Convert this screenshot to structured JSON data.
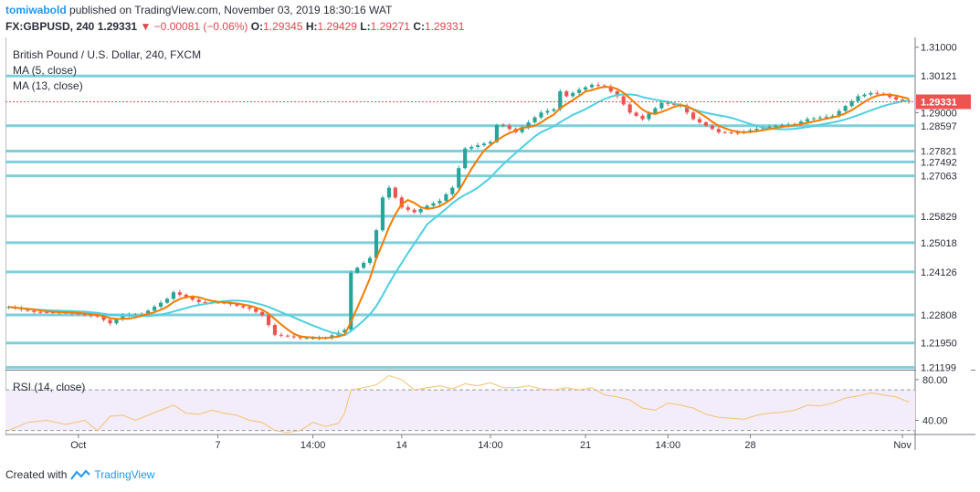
{
  "header": {
    "author": "tomiwabold",
    "published_text": "published on TradingView.com, November 03, 2019 18:30:16 WAT",
    "symbol": "FX:GBPUSD, 240",
    "price": "1.29331",
    "change": "−0.00081 (−0.06%)",
    "open_label": "O:",
    "open_value": "1.29345",
    "high_label": "H:",
    "high_value": "1.29429",
    "low_label": "L:",
    "low_value": "1.29271",
    "close_label": "C:",
    "close_value": "1.29331"
  },
  "legend": {
    "title": "British Pound / U.S. Dollar, 240, FXCM",
    "ma5": "MA (5, close)",
    "ma13": "MA (13, close)"
  },
  "rsi_title": "RSI (14, close)",
  "footer": {
    "created_with": "Created with",
    "brand": "TradingView"
  },
  "colors": {
    "up": "#26a69a",
    "down": "#ef5350",
    "ma5": "#f57c00",
    "ma13": "#4dd0e1",
    "level_line": "#7fcfdb",
    "rsi_line": "#f5c16c",
    "rsi_band": "#f3ecfb",
    "price_tag": "#ef5350"
  },
  "chart_data": {
    "type": "candlestick",
    "title": "British Pound / U.S. Dollar, 240, FXCM",
    "ylim": [
      1.2116,
      1.313
    ],
    "y_tick_labels": [
      "1.31000",
      "1.29000"
    ],
    "horizontal_levels": [
      1.30121,
      1.28597,
      1.27821,
      1.27492,
      1.27063,
      1.25829,
      1.25018,
      1.24126,
      1.22808,
      1.2195,
      1.21199
    ],
    "last_price": 1.29331,
    "x_labels": [
      "Oct",
      "7",
      "14:00",
      "14",
      "14:00",
      "21",
      "14:00",
      "28",
      "Nov"
    ],
    "x_label_index": [
      11,
      33,
      48,
      62,
      76,
      91,
      104,
      117,
      141
    ],
    "n_bars": 143,
    "anchors": [
      [
        0,
        1.2305
      ],
      [
        4,
        1.229
      ],
      [
        9,
        1.2288
      ],
      [
        14,
        1.2276
      ],
      [
        16,
        1.2255
      ],
      [
        18,
        1.228
      ],
      [
        21,
        1.2282
      ],
      [
        25,
        1.233
      ],
      [
        26,
        1.235
      ],
      [
        28,
        1.2335
      ],
      [
        30,
        1.232
      ],
      [
        34,
        1.2318
      ],
      [
        38,
        1.23
      ],
      [
        40,
        1.228
      ],
      [
        42,
        1.222
      ],
      [
        46,
        1.221
      ],
      [
        50,
        1.221
      ],
      [
        53,
        1.2235
      ],
      [
        54,
        1.241
      ],
      [
        56,
        1.244
      ],
      [
        57,
        1.2455
      ],
      [
        58,
        1.254
      ],
      [
        59,
        1.264
      ],
      [
        60,
        1.267
      ],
      [
        61,
        1.264
      ],
      [
        62,
        1.261
      ],
      [
        64,
        1.2595
      ],
      [
        66,
        1.2615
      ],
      [
        68,
        1.263
      ],
      [
        70,
        1.267
      ],
      [
        72,
        1.279
      ],
      [
        74,
        1.28
      ],
      [
        76,
        1.281
      ],
      [
        77,
        1.2862
      ],
      [
        78,
        1.286
      ],
      [
        80,
        1.284
      ],
      [
        82,
        1.287
      ],
      [
        84,
        1.29
      ],
      [
        86,
        1.291
      ],
      [
        87,
        1.2965
      ],
      [
        88,
        1.295
      ],
      [
        90,
        1.297
      ],
      [
        92,
        1.2985
      ],
      [
        94,
        1.298
      ],
      [
        96,
        1.295
      ],
      [
        98,
        1.29
      ],
      [
        100,
        1.288
      ],
      [
        103,
        1.293
      ],
      [
        106,
        1.292
      ],
      [
        108,
        1.288
      ],
      [
        110,
        1.286
      ],
      [
        112,
        1.284
      ],
      [
        115,
        1.2838
      ],
      [
        118,
        1.285
      ],
      [
        121,
        1.286
      ],
      [
        124,
        1.2865
      ],
      [
        126,
        1.288
      ],
      [
        128,
        1.2885
      ],
      [
        130,
        1.289
      ],
      [
        132,
        1.292
      ],
      [
        134,
        1.295
      ],
      [
        136,
        1.296
      ],
      [
        138,
        1.2955
      ],
      [
        140,
        1.294
      ],
      [
        142,
        1.29331
      ]
    ],
    "rsi": {
      "name": "RSI (14, close)",
      "ylim": [
        27,
        88
      ],
      "levels": [
        70,
        30
      ],
      "y_tick_labels": [
        "80.00",
        "40.00"
      ],
      "anchors": [
        [
          0,
          30
        ],
        [
          3,
          38
        ],
        [
          6,
          40
        ],
        [
          9,
          36
        ],
        [
          12,
          40
        ],
        [
          14,
          30
        ],
        [
          16,
          44
        ],
        [
          18,
          45
        ],
        [
          20,
          40
        ],
        [
          24,
          50
        ],
        [
          26,
          55
        ],
        [
          28,
          47
        ],
        [
          30,
          46
        ],
        [
          32,
          50
        ],
        [
          34,
          47
        ],
        [
          36,
          45
        ],
        [
          38,
          40
        ],
        [
          40,
          38
        ],
        [
          42,
          30
        ],
        [
          44,
          28
        ],
        [
          46,
          30
        ],
        [
          48,
          38
        ],
        [
          50,
          34
        ],
        [
          52,
          37
        ],
        [
          53,
          47
        ],
        [
          54,
          70
        ],
        [
          56,
          72
        ],
        [
          58,
          75
        ],
        [
          60,
          84
        ],
        [
          62,
          80
        ],
        [
          64,
          70
        ],
        [
          66,
          72
        ],
        [
          68,
          74
        ],
        [
          70,
          71
        ],
        [
          72,
          76
        ],
        [
          74,
          74
        ],
        [
          76,
          77
        ],
        [
          78,
          72
        ],
        [
          80,
          72
        ],
        [
          82,
          74
        ],
        [
          84,
          71
        ],
        [
          86,
          70
        ],
        [
          88,
          72
        ],
        [
          90,
          70
        ],
        [
          92,
          72
        ],
        [
          94,
          65
        ],
        [
          96,
          63
        ],
        [
          98,
          60
        ],
        [
          100,
          52
        ],
        [
          102,
          50
        ],
        [
          104,
          57
        ],
        [
          106,
          55
        ],
        [
          108,
          52
        ],
        [
          110,
          46
        ],
        [
          112,
          43
        ],
        [
          114,
          42
        ],
        [
          116,
          41
        ],
        [
          118,
          45
        ],
        [
          120,
          47
        ],
        [
          122,
          48
        ],
        [
          124,
          50
        ],
        [
          126,
          55
        ],
        [
          128,
          54
        ],
        [
          130,
          57
        ],
        [
          132,
          62
        ],
        [
          134,
          64
        ],
        [
          136,
          67
        ],
        [
          138,
          65
        ],
        [
          140,
          63
        ],
        [
          142,
          58
        ]
      ]
    }
  }
}
